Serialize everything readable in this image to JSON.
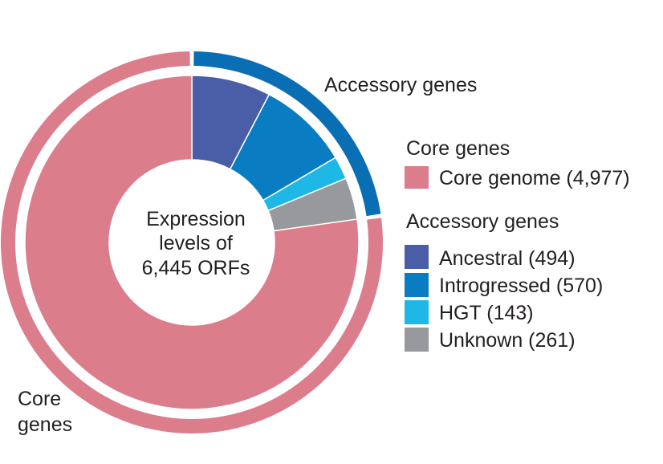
{
  "chart_data": {
    "type": "pie",
    "center_label": [
      "Expression",
      "levels of",
      "6,445 ORFs"
    ],
    "outer_ring": [
      {
        "name": "Core genes",
        "label": [
          "Core",
          "genes"
        ],
        "color": "#dc7d8c"
      },
      {
        "name": "Accessory genes",
        "label": [
          "Accessory genes"
        ],
        "color": "#0a6eb4"
      }
    ],
    "inner_ring": {
      "categories": [
        "Ancestral",
        "Introgressed",
        "HGT",
        "Unknown",
        "Core genome"
      ],
      "values": [
        494,
        570,
        143,
        261,
        4977
      ],
      "colors": [
        "#4a5ea8",
        "#0a7cc1",
        "#1db8e5",
        "#97999c",
        "#dc7d8c"
      ],
      "group": [
        "Accessory genes",
        "Accessory genes",
        "Accessory genes",
        "Accessory genes",
        "Core genes"
      ]
    },
    "legend": {
      "placement": "right",
      "groups": [
        {
          "heading": "Core genes",
          "items": [
            {
              "label": "Core genome (4,977)",
              "color": "#dc7d8c"
            }
          ]
        },
        {
          "heading": "Accessory genes",
          "items": [
            {
              "label": "Ancestral (494)",
              "color": "#4a5ea8"
            },
            {
              "label": "Introgressed (570)",
              "color": "#0a7cc1"
            },
            {
              "label": "HGT (143)",
              "color": "#1db8e5"
            },
            {
              "label": "Unknown (261)",
              "color": "#97999c"
            }
          ]
        }
      ]
    }
  }
}
